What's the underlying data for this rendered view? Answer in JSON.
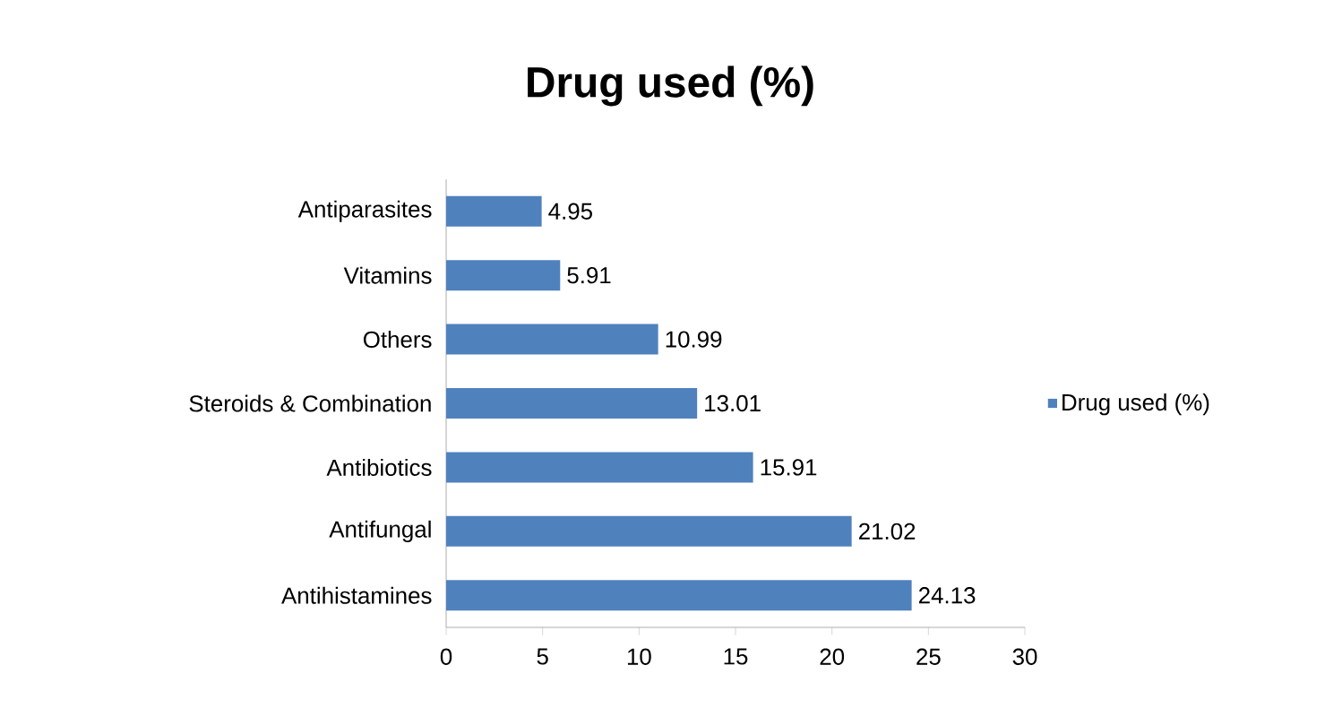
{
  "chart_data": {
    "type": "bar",
    "orientation": "horizontal",
    "title": "Drug used (%)",
    "categories": [
      "Antiparasites",
      "Vitamins",
      "Others",
      "Steroids & Combination",
      "Antibiotics",
      "Antifungal",
      "Antihistamines"
    ],
    "series": [
      {
        "name": "Drug used (%)",
        "color": "#4f81bd",
        "values": [
          4.95,
          5.91,
          10.99,
          13.01,
          15.91,
          21.02,
          24.13
        ]
      }
    ],
    "xlim": [
      0,
      30
    ],
    "xticks": [
      0,
      5,
      10,
      15,
      20,
      25,
      30
    ],
    "data_labels": true,
    "legend": "right",
    "grid": false
  }
}
